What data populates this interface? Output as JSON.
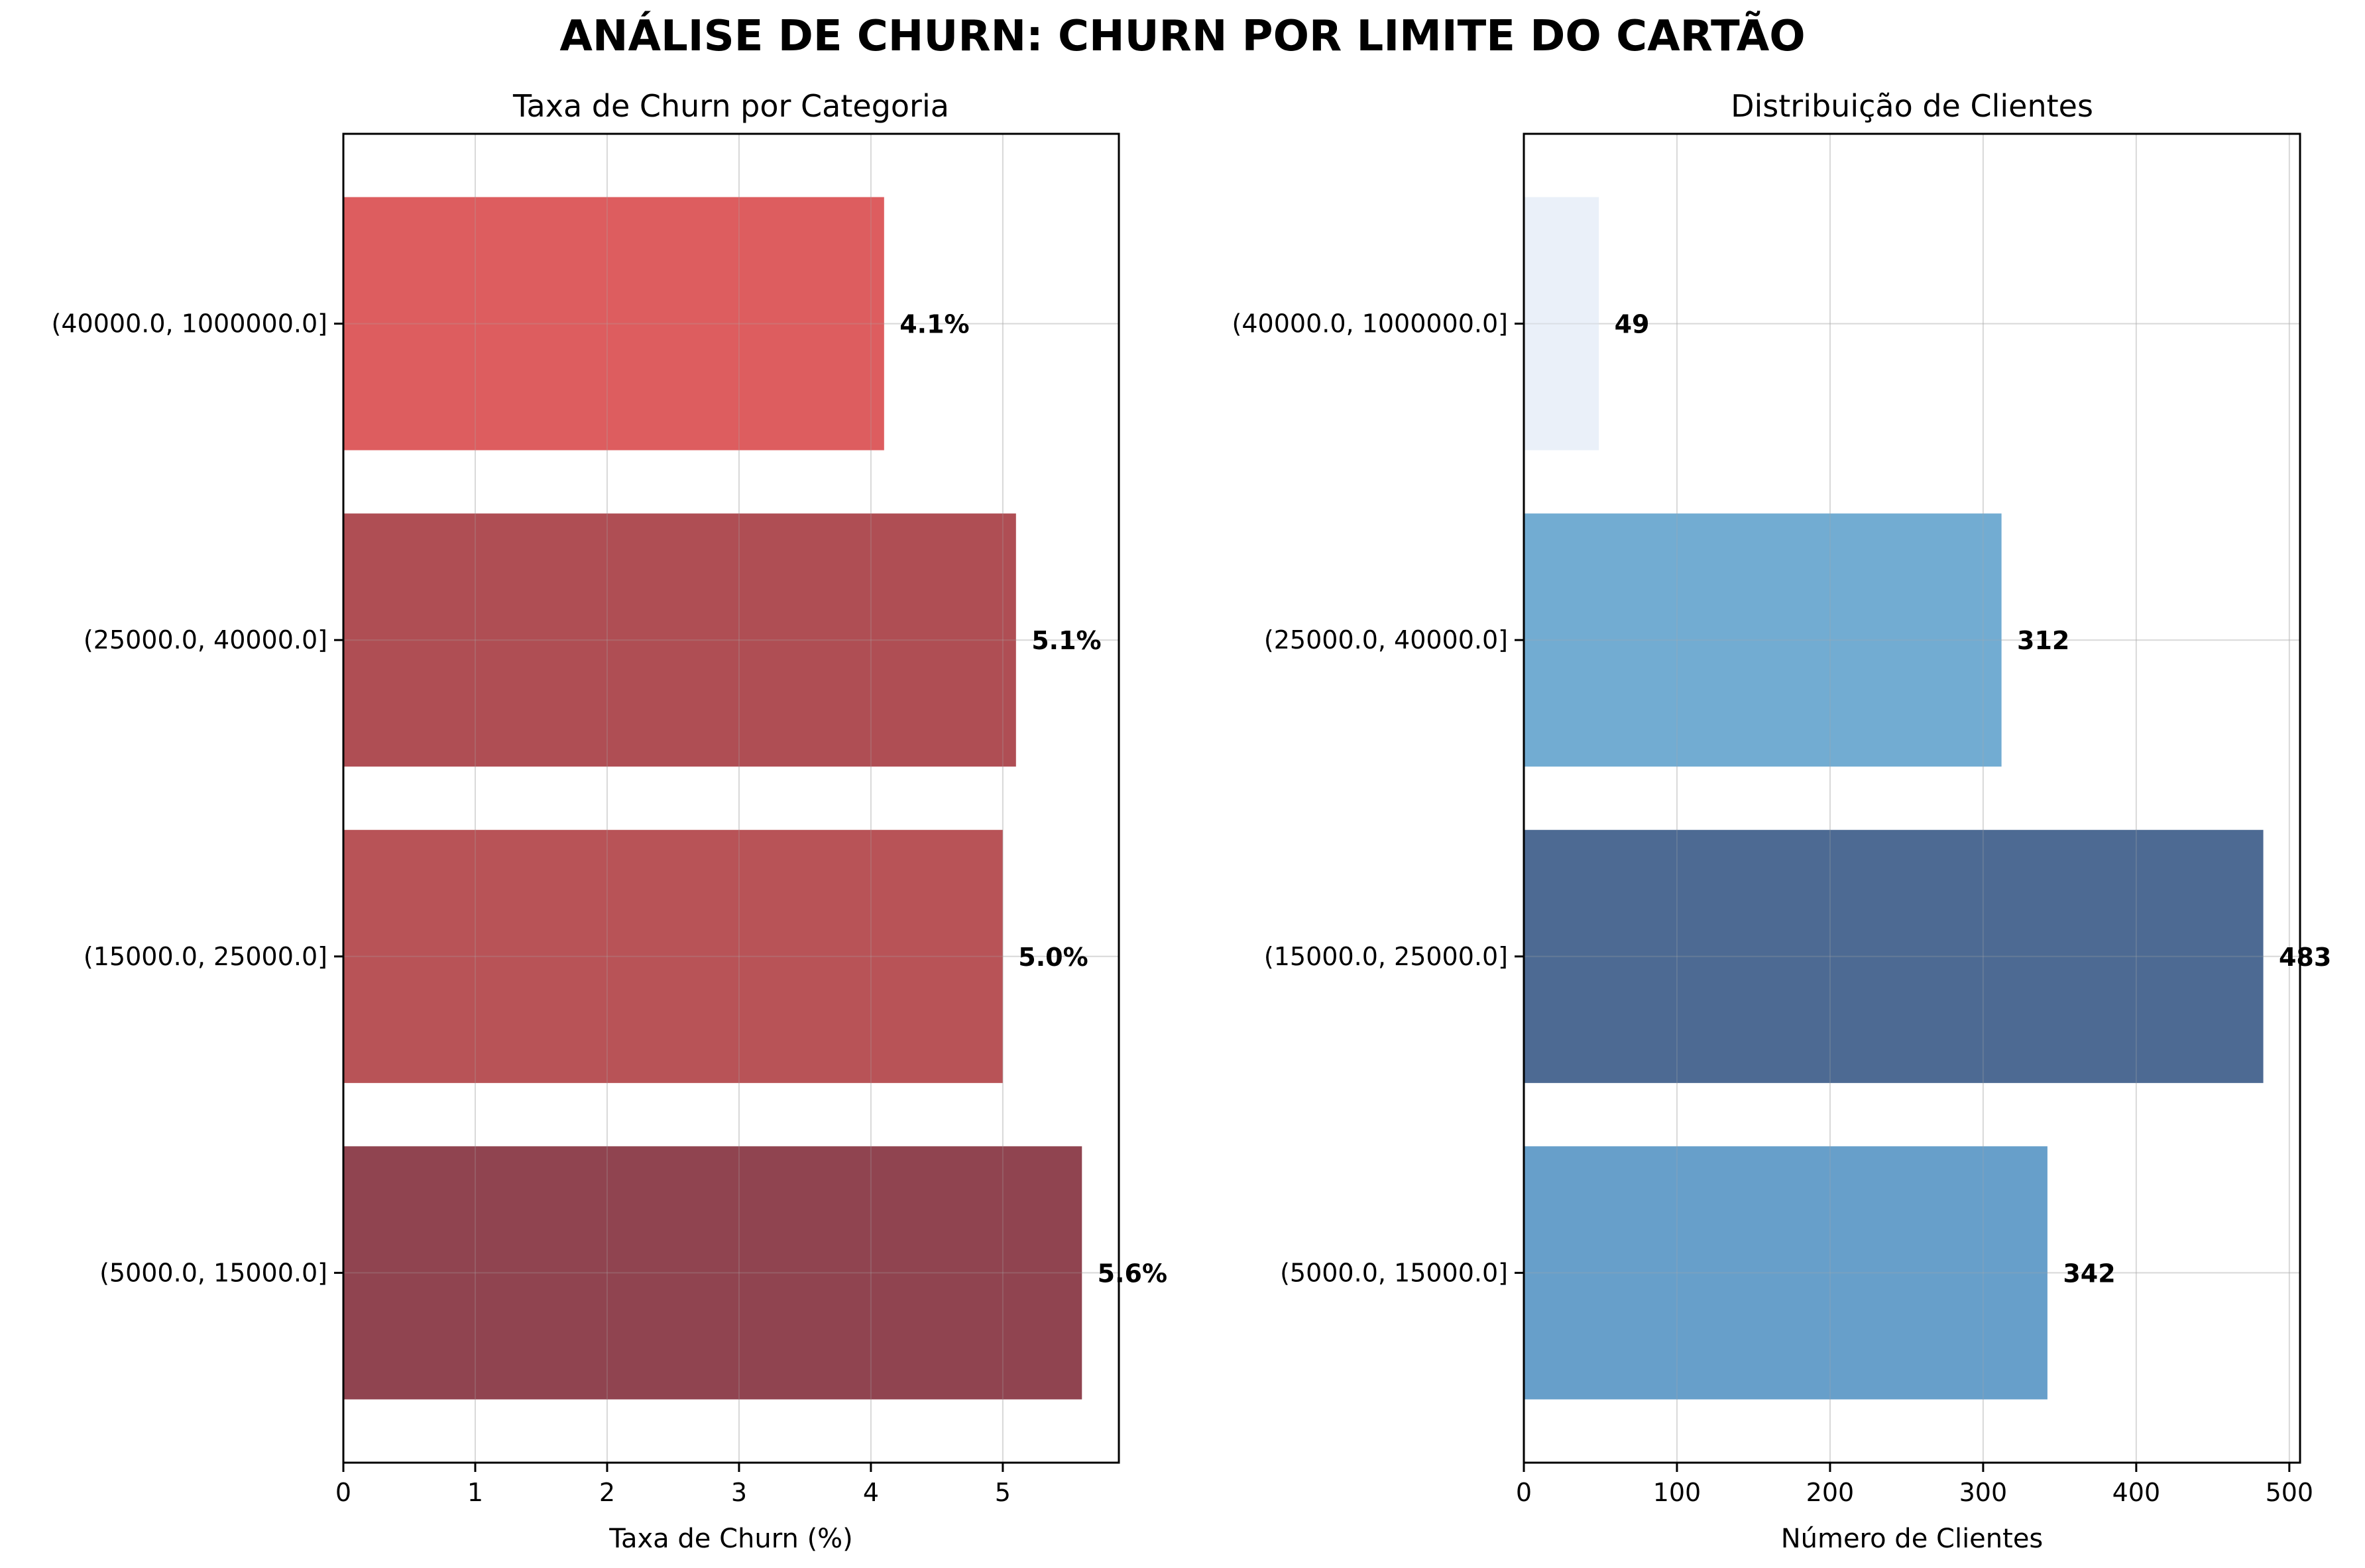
{
  "suptitle": "ANÁLISE DE CHURN: CHURN POR LIMITE DO CARTÃO",
  "chart_data": [
    {
      "type": "bar",
      "orientation": "horizontal",
      "title": "Taxa de Churn por Categoria",
      "xlabel": "Taxa de Churn (%)",
      "ylabel": "",
      "categories": [
        "(5000.0, 15000.0]",
        "(15000.0, 25000.0]",
        "(25000.0, 40000.0]",
        "(40000.0, 1000000.0]"
      ],
      "values": [
        5.6,
        5.0,
        5.1,
        4.1
      ],
      "value_labels": [
        "5.6%",
        "5.0%",
        "5.1%",
        "4.1%"
      ],
      "bar_colors": [
        "#84303d",
        "#b04045",
        "#a63b41",
        "#d94b4e"
      ],
      "xlim": [
        0,
        5.88
      ],
      "xticks": [
        0,
        1,
        2,
        3,
        4,
        5
      ],
      "grid": true,
      "legend": "none"
    },
    {
      "type": "bar",
      "orientation": "horizontal",
      "title": "Distribuição de Clientes",
      "xlabel": "Número de Clientes",
      "ylabel": "",
      "categories": [
        "(5000.0, 15000.0]",
        "(15000.0, 25000.0]",
        "(25000.0, 40000.0]",
        "(40000.0, 1000000.0]"
      ],
      "values": [
        342,
        483,
        312,
        49
      ],
      "value_labels": [
        "342",
        "483",
        "312",
        "49"
      ],
      "bar_colors": [
        "#5795c4",
        "#3a5a87",
        "#63a3cd",
        "#e8eef8"
      ],
      "xlim": [
        0,
        507
      ],
      "xticks": [
        0,
        100,
        200,
        300,
        400,
        500
      ],
      "grid": true,
      "legend": "none"
    }
  ]
}
